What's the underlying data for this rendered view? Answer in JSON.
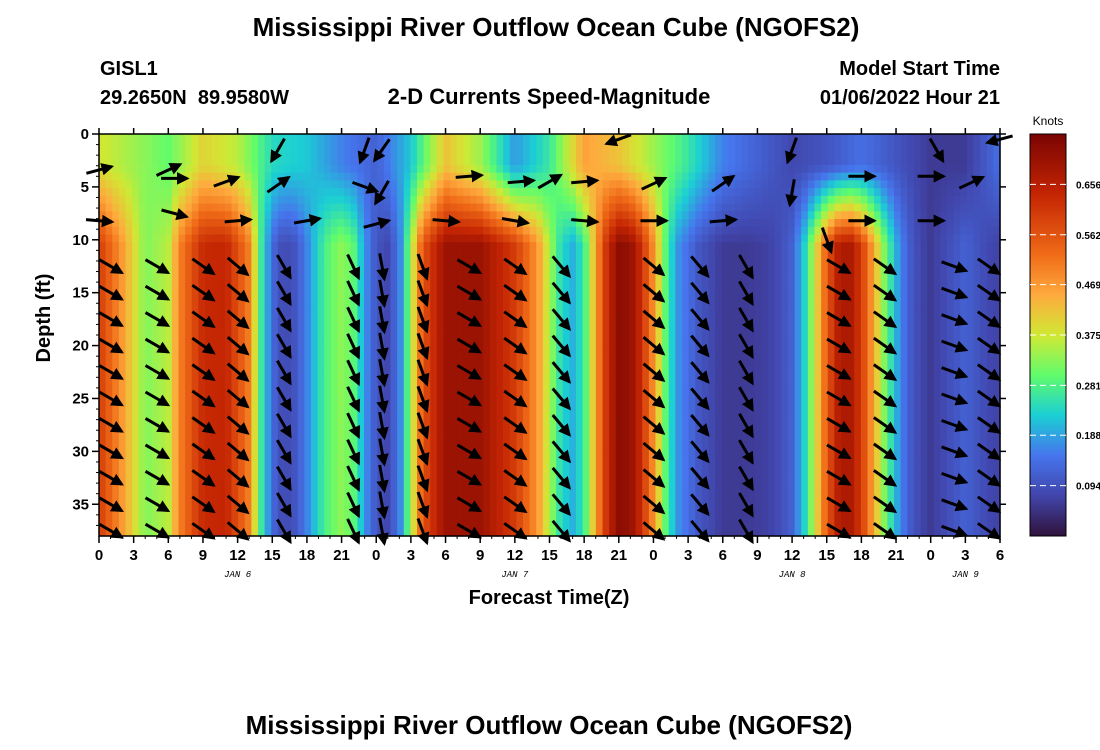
{
  "chart_data": {
    "type": "heatmap",
    "title": "Mississippi River Outflow Ocean Cube (NGOFS2)",
    "station": {
      "name": "GISL1",
      "coords": "29.2650N  89.9580W"
    },
    "subtitle": "2-D Currents Speed-Magnitude",
    "model_start": {
      "label": "Model Start Time",
      "value": "01/06/2022 Hour 21"
    },
    "xlabel": "Forecast Time(Z)",
    "ylabel": "Depth (ft)",
    "x_ticks": [
      "0",
      "3",
      "6",
      "9",
      "12",
      "15",
      "18",
      "21",
      "0",
      "3",
      "6",
      "9",
      "12",
      "15",
      "18",
      "21",
      "0",
      "3",
      "6",
      "9",
      "12",
      "15",
      "18",
      "21",
      "0",
      "3",
      "6"
    ],
    "x_range_hours": [
      0,
      78
    ],
    "date_labels": [
      {
        "text": "JAN 6",
        "hour": 12
      },
      {
        "text": "JAN 7",
        "hour": 36
      },
      {
        "text": "JAN 8",
        "hour": 60
      },
      {
        "text": "JAN 9",
        "hour": 75
      }
    ],
    "y_ticks": [
      0,
      5,
      10,
      15,
      20,
      25,
      30,
      35
    ],
    "y_range_ft": [
      0,
      38
    ],
    "colorbar": {
      "title": "Knots",
      "ticks": [
        "0.656",
        "0.562",
        "0.469",
        "0.375",
        "0.281",
        "0.188",
        "0.094"
      ],
      "tick_values": [
        0.656,
        0.562,
        0.469,
        0.375,
        0.281,
        0.188,
        0.094
      ],
      "range": [
        0.0,
        0.75
      ]
    },
    "deep_speed_profile": {
      "hours": [
        0,
        2,
        4,
        6,
        7,
        9,
        11,
        13,
        14,
        15,
        16,
        17,
        18,
        19,
        20,
        21,
        22,
        23,
        24,
        25,
        26,
        27,
        28,
        30,
        33,
        36,
        38,
        39,
        40,
        41,
        42,
        43,
        44,
        45,
        46,
        47,
        48,
        49,
        50,
        52,
        54,
        56,
        58,
        59,
        60,
        61,
        62,
        63,
        64,
        65,
        66,
        67,
        68,
        69,
        70,
        71,
        72,
        73,
        74,
        75,
        76,
        77,
        78
      ],
      "speed_knots": [
        0.6,
        0.47,
        0.32,
        0.36,
        0.5,
        0.63,
        0.64,
        0.5,
        0.27,
        0.13,
        0.08,
        0.1,
        0.16,
        0.24,
        0.3,
        0.33,
        0.3,
        0.18,
        0.1,
        0.08,
        0.15,
        0.34,
        0.56,
        0.7,
        0.7,
        0.6,
        0.47,
        0.35,
        0.24,
        0.2,
        0.26,
        0.46,
        0.63,
        0.72,
        0.71,
        0.62,
        0.48,
        0.3,
        0.18,
        0.1,
        0.06,
        0.06,
        0.07,
        0.09,
        0.12,
        0.22,
        0.38,
        0.55,
        0.66,
        0.68,
        0.6,
        0.46,
        0.32,
        0.2,
        0.12,
        0.08,
        0.06,
        0.08,
        0.1,
        0.12,
        0.1,
        0.08,
        0.07
      ]
    },
    "surface_speed_profile": {
      "hours": [
        0,
        3,
        6,
        9,
        12,
        15,
        18,
        21,
        24,
        27,
        30,
        33,
        36,
        39,
        42,
        45,
        48,
        51,
        54,
        57,
        60,
        63,
        66,
        69,
        72,
        75,
        78
      ],
      "speed_knots": [
        0.38,
        0.34,
        0.3,
        0.4,
        0.36,
        0.24,
        0.22,
        0.16,
        0.12,
        0.22,
        0.42,
        0.34,
        0.18,
        0.26,
        0.46,
        0.42,
        0.34,
        0.26,
        0.16,
        0.12,
        0.08,
        0.1,
        0.14,
        0.1,
        0.06,
        0.06,
        0.14
      ]
    },
    "vectors_shallow": [
      {
        "hour": 0,
        "depth": 3.4,
        "dir": 75
      },
      {
        "hour": 6,
        "depth": 3.4,
        "dir": 65
      },
      {
        "hour": 15.5,
        "depth": 1.5,
        "dir": 210
      },
      {
        "hour": 23,
        "depth": 1.5,
        "dir": 200
      },
      {
        "hour": 24.5,
        "depth": 1.5,
        "dir": 215
      },
      {
        "hour": 45,
        "depth": 0.5,
        "dir": 250
      },
      {
        "hour": 60,
        "depth": 1.5,
        "dir": 200
      },
      {
        "hour": 72.5,
        "depth": 1.5,
        "dir": 150
      },
      {
        "hour": 78,
        "depth": 0.5,
        "dir": 255
      },
      {
        "hour": 6.5,
        "depth": 4.2,
        "dir": 90
      },
      {
        "hour": 11,
        "depth": 4.5,
        "dir": 70
      },
      {
        "hour": 15.5,
        "depth": 4.8,
        "dir": 55
      },
      {
        "hour": 23,
        "depth": 5,
        "dir": 110
      },
      {
        "hour": 24.5,
        "depth": 5.5,
        "dir": 210
      },
      {
        "hour": 32,
        "depth": 4,
        "dir": 85
      },
      {
        "hour": 36.5,
        "depth": 4.5,
        "dir": 85
      },
      {
        "hour": 39,
        "depth": 4.5,
        "dir": 60
      },
      {
        "hour": 42,
        "depth": 4.5,
        "dir": 85
      },
      {
        "hour": 48,
        "depth": 4.7,
        "dir": 65
      },
      {
        "hour": 54,
        "depth": 4.7,
        "dir": 55
      },
      {
        "hour": 60,
        "depth": 5.5,
        "dir": 190
      },
      {
        "hour": 66,
        "depth": 4,
        "dir": 90
      },
      {
        "hour": 72,
        "depth": 4,
        "dir": 90
      },
      {
        "hour": 75.5,
        "depth": 4.6,
        "dir": 65
      },
      {
        "hour": 0,
        "depth": 8.2,
        "dir": 95
      },
      {
        "hour": 6.5,
        "depth": 7.5,
        "dir": 105
      },
      {
        "hour": 12,
        "depth": 8.2,
        "dir": 85
      },
      {
        "hour": 18,
        "depth": 8.2,
        "dir": 80
      },
      {
        "hour": 24,
        "depth": 8.5,
        "dir": 75
      },
      {
        "hour": 30,
        "depth": 8.2,
        "dir": 95
      },
      {
        "hour": 36,
        "depth": 8.2,
        "dir": 100
      },
      {
        "hour": 42,
        "depth": 8.2,
        "dir": 95
      },
      {
        "hour": 48,
        "depth": 8.2,
        "dir": 90
      },
      {
        "hour": 54,
        "depth": 8.2,
        "dir": 85
      },
      {
        "hour": 63,
        "depth": 10,
        "dir": 160
      },
      {
        "hour": 66,
        "depth": 8.2,
        "dir": 90
      },
      {
        "hour": 72,
        "depth": 8.2,
        "dir": 90
      }
    ],
    "vectors_deep_columns": [
      {
        "hour": 1,
        "dir": 120
      },
      {
        "hour": 5,
        "dir": 120
      },
      {
        "hour": 9,
        "dir": 125
      },
      {
        "hour": 12,
        "dir": 130
      },
      {
        "hour": 16,
        "dir": 150
      },
      {
        "hour": 22,
        "dir": 155
      },
      {
        "hour": 24.5,
        "dir": 170
      },
      {
        "hour": 28,
        "dir": 160
      },
      {
        "hour": 32,
        "dir": 120
      },
      {
        "hour": 36,
        "dir": 125
      },
      {
        "hour": 40,
        "dir": 140
      },
      {
        "hour": 48,
        "dir": 130
      },
      {
        "hour": 52,
        "dir": 140
      },
      {
        "hour": 56,
        "dir": 150
      },
      {
        "hour": 64,
        "dir": 120
      },
      {
        "hour": 68,
        "dir": 125
      },
      {
        "hour": 74,
        "dir": 110
      },
      {
        "hour": 77,
        "dir": 125
      }
    ],
    "vector_depths_deep": [
      12.5,
      15,
      17.5,
      20,
      22.5,
      25,
      27.5,
      30,
      32.5,
      35,
      37.5
    ]
  },
  "footer_title": "Mississippi River Outflow Ocean Cube (NGOFS2)"
}
